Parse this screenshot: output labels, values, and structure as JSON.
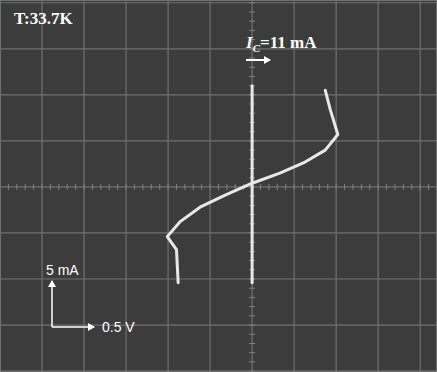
{
  "chart_data": {
    "type": "line",
    "title": "T:33.7K",
    "annotations": [
      {
        "text": "I",
        "subscript": "C",
        "suffix": "=11 mA"
      }
    ],
    "scale_bar": {
      "x": 0.5,
      "x_label": "0.5 V",
      "y": 5,
      "y_label": "5 mA"
    },
    "xlim": [
      -3.0,
      2.2
    ],
    "ylim": [
      -20.1,
      20.3
    ],
    "xticks": [
      -3.0,
      -2.5,
      -2.0,
      -1.5,
      -1.0,
      -0.5,
      0,
      0.5,
      1.0,
      1.5,
      2.0
    ],
    "yticks": [
      -20,
      -15,
      -10,
      -5,
      0,
      5,
      10,
      15,
      20
    ],
    "grid": true,
    "tick_labels": false,
    "color": "#e8e8e8",
    "series": [
      {
        "x": [
          0,
          0
        ],
        "values": [
          -10.4,
          11
        ]
      },
      {
        "x": [
          -0.88,
          -0.9,
          -1.01,
          -0.86,
          -0.62,
          -0.32,
          0,
          0.33,
          0.63,
          0.87,
          1.02,
          0.93,
          0.87
        ],
        "values": [
          -10.4,
          -6.8,
          -5.4,
          -3.8,
          -2.2,
          -0.9,
          0.4,
          1.5,
          2.7,
          4.0,
          5.7,
          8.4,
          10.5
        ]
      }
    ]
  }
}
